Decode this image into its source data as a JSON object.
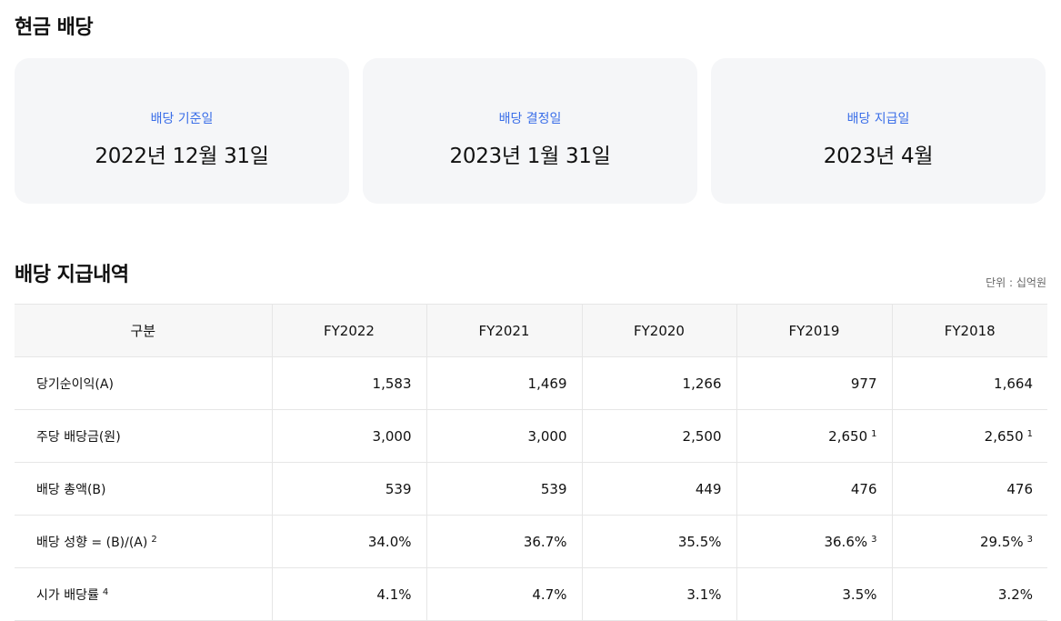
{
  "sections": {
    "cash_dividend_title": "현금 배당",
    "history_title": "배당 지급내역",
    "unit": "단위 : 십억원"
  },
  "cards": [
    {
      "label": "배당 기준일",
      "value": "2022년 12월 31일"
    },
    {
      "label": "배당 결정일",
      "value": "2023년 1월 31일"
    },
    {
      "label": "배당 지급일",
      "value": "2023년 4월"
    }
  ],
  "table": {
    "headers": [
      "구분",
      "FY2022",
      "FY2021",
      "FY2020",
      "FY2019",
      "FY2018"
    ],
    "rows": [
      {
        "label": "당기순이익(A)",
        "label_note": "",
        "cells": [
          {
            "v": "1,583",
            "n": ""
          },
          {
            "v": "1,469",
            "n": ""
          },
          {
            "v": "1,266",
            "n": ""
          },
          {
            "v": "977",
            "n": ""
          },
          {
            "v": "1,664",
            "n": ""
          }
        ]
      },
      {
        "label": "주당 배당금(원)",
        "label_note": "",
        "cells": [
          {
            "v": "3,000",
            "n": ""
          },
          {
            "v": "3,000",
            "n": ""
          },
          {
            "v": "2,500",
            "n": ""
          },
          {
            "v": "2,650",
            "n": "1"
          },
          {
            "v": "2,650",
            "n": "1"
          }
        ]
      },
      {
        "label": "배당 총액(B)",
        "label_note": "",
        "cells": [
          {
            "v": "539",
            "n": ""
          },
          {
            "v": "539",
            "n": ""
          },
          {
            "v": "449",
            "n": ""
          },
          {
            "v": "476",
            "n": ""
          },
          {
            "v": "476",
            "n": ""
          }
        ]
      },
      {
        "label": "배당 성향 = (B)/(A)",
        "label_note": "2",
        "cells": [
          {
            "v": "34.0%",
            "n": ""
          },
          {
            "v": "36.7%",
            "n": ""
          },
          {
            "v": "35.5%",
            "n": ""
          },
          {
            "v": "36.6%",
            "n": "3"
          },
          {
            "v": "29.5%",
            "n": "3"
          }
        ]
      },
      {
        "label": "시가 배당률",
        "label_note": "4",
        "cells": [
          {
            "v": "4.1%",
            "n": ""
          },
          {
            "v": "4.7%",
            "n": ""
          },
          {
            "v": "3.1%",
            "n": ""
          },
          {
            "v": "3.5%",
            "n": ""
          },
          {
            "v": "3.2%",
            "n": ""
          }
        ]
      }
    ]
  }
}
